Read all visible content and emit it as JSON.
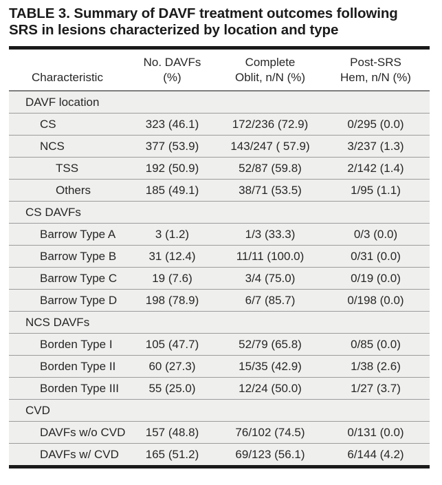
{
  "title": "TABLE 3. Summary of DAVF treatment outcomes following SRS in lesions characterized by location and type",
  "colors": {
    "body_row_bg": "#efefee",
    "row_divider": "#9b9b9b",
    "header_divider": "#7d7d7d",
    "thick_rule": "#1a1a1a",
    "text": "#262626",
    "page_bg": "#ffffff"
  },
  "table": {
    "columns": [
      {
        "id": "characteristic",
        "line1": "",
        "line2": "Characteristic"
      },
      {
        "id": "no_davfs",
        "line1": "No. DAVFs",
        "line2": "(%)"
      },
      {
        "id": "complete_oblit",
        "line1": "Complete",
        "line2": "Oblit, n/N (%)"
      },
      {
        "id": "post_srs_hem",
        "line1": "Post-SRS",
        "line2": "Hem, n/N (%)"
      }
    ],
    "rows": [
      {
        "type": "section",
        "indent": 1,
        "label": "DAVF location",
        "no_davfs": "",
        "complete_oblit": "",
        "post_srs_hem": ""
      },
      {
        "type": "data",
        "indent": 2,
        "label": "CS",
        "no_davfs": "323 (46.1)",
        "complete_oblit": "172/236 (72.9)",
        "post_srs_hem": "0/295 (0.0)"
      },
      {
        "type": "data",
        "indent": 2,
        "label": "NCS",
        "no_davfs": "377 (53.9)",
        "complete_oblit": "143/247 ( 57.9)",
        "post_srs_hem": "3/237 (1.3)"
      },
      {
        "type": "data",
        "indent": 3,
        "label": "TSS",
        "no_davfs": "192 (50.9)",
        "complete_oblit": "52/87 (59.8)",
        "post_srs_hem": "2/142 (1.4)"
      },
      {
        "type": "data",
        "indent": 3,
        "label": "Others",
        "no_davfs": "185 (49.1)",
        "complete_oblit": "38/71 (53.5)",
        "post_srs_hem": "1/95 (1.1)"
      },
      {
        "type": "section",
        "indent": 1,
        "label": "CS DAVFs",
        "no_davfs": "",
        "complete_oblit": "",
        "post_srs_hem": ""
      },
      {
        "type": "data",
        "indent": 2,
        "label": "Barrow Type A",
        "no_davfs": "3 (1.2)",
        "complete_oblit": "1/3 (33.3)",
        "post_srs_hem": "0/3 (0.0)"
      },
      {
        "type": "data",
        "indent": 2,
        "label": "Barrow Type B",
        "no_davfs": "31 (12.4)",
        "complete_oblit": "11/11 (100.0)",
        "post_srs_hem": "0/31 (0.0)"
      },
      {
        "type": "data",
        "indent": 2,
        "label": "Barrow Type C",
        "no_davfs": "19 (7.6)",
        "complete_oblit": "3/4 (75.0)",
        "post_srs_hem": "0/19 (0.0)"
      },
      {
        "type": "data",
        "indent": 2,
        "label": "Barrow Type D",
        "no_davfs": "198 (78.9)",
        "complete_oblit": "6/7 (85.7)",
        "post_srs_hem": "0/198 (0.0)"
      },
      {
        "type": "section",
        "indent": 1,
        "label": "NCS DAVFs",
        "no_davfs": "",
        "complete_oblit": "",
        "post_srs_hem": ""
      },
      {
        "type": "data",
        "indent": 2,
        "label": "Borden Type I",
        "no_davfs": "105 (47.7)",
        "complete_oblit": "52/79 (65.8)",
        "post_srs_hem": "0/85 (0.0)"
      },
      {
        "type": "data",
        "indent": 2,
        "label": "Borden Type II",
        "no_davfs": "60 (27.3)",
        "complete_oblit": "15/35 (42.9)",
        "post_srs_hem": "1/38 (2.6)"
      },
      {
        "type": "data",
        "indent": 2,
        "label": "Borden Type III",
        "no_davfs": "55 (25.0)",
        "complete_oblit": "12/24 (50.0)",
        "post_srs_hem": "1/27 (3.7)"
      },
      {
        "type": "section",
        "indent": 1,
        "label": "CVD",
        "no_davfs": "",
        "complete_oblit": "",
        "post_srs_hem": ""
      },
      {
        "type": "data",
        "indent": 2,
        "label": "DAVFs w/o CVD",
        "no_davfs": "157 (48.8)",
        "complete_oblit": "76/102 (74.5)",
        "post_srs_hem": "0/131 (0.0)"
      },
      {
        "type": "data",
        "indent": 2,
        "label": "DAVFs w/ CVD",
        "no_davfs": "165 (51.2)",
        "complete_oblit": "69/123 (56.1)",
        "post_srs_hem": "6/144 (4.2)"
      }
    ]
  }
}
